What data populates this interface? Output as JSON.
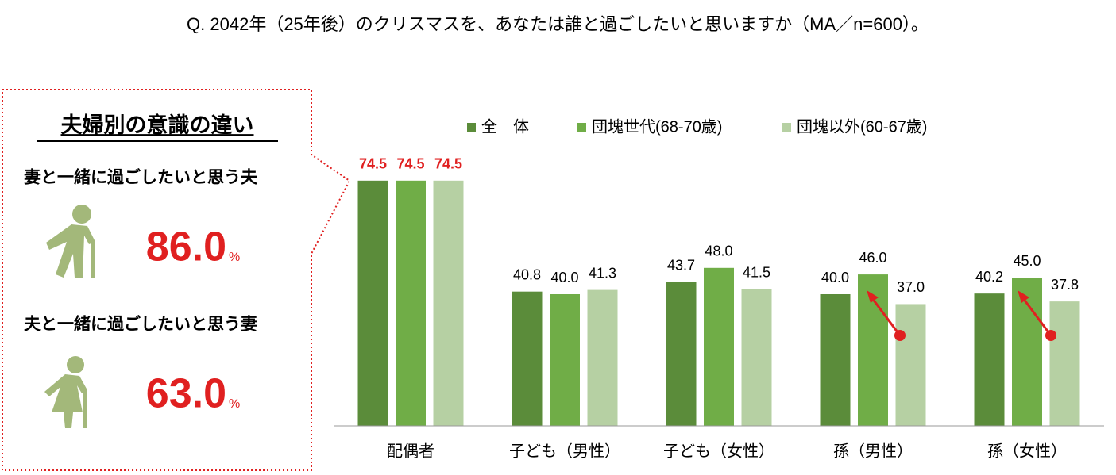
{
  "title": "Q. 2042年（25年後）のクリスマスを、あなたは誰と過ごしたいと思いますか（MA／n=600）。",
  "panel": {
    "title": "夫婦別の意識の違い",
    "items": [
      {
        "label": "妻と一緒に過ごしたいと思う夫",
        "value": "86.0",
        "unit": "%"
      },
      {
        "label": "夫と一緒に過ごしたいと思う妻",
        "value": "63.0",
        "unit": "%"
      }
    ]
  },
  "chart_data": {
    "type": "bar",
    "categories": [
      "配偶者",
      "子ども（男性）",
      "子ども（女性）",
      "孫（男性）",
      "孫（女性）"
    ],
    "series": [
      {
        "name": "全　体",
        "color": "#5b8c3a",
        "values": [
          74.5,
          40.8,
          43.7,
          40,
          40.2
        ],
        "value_labels": [
          "74.5",
          "40.8",
          "43.7",
          "40.0",
          "40.2"
        ]
      },
      {
        "name": "団塊世代(68-70歳)",
        "color": "#70ad47",
        "values": [
          74.5,
          40,
          48,
          46,
          45
        ],
        "value_labels": [
          "74.5",
          "40.0",
          "48.0",
          "46.0",
          "45.0"
        ]
      },
      {
        "name": "団塊以外(60-67歳)",
        "color": "#b6d0a3",
        "values": [
          74.5,
          41.3,
          41.5,
          37,
          37.8
        ],
        "value_labels": [
          "74.5",
          "41.3",
          "41.5",
          "37.0",
          "37.8"
        ]
      }
    ],
    "ylim": [
      0,
      80
    ],
    "legend": "top"
  }
}
